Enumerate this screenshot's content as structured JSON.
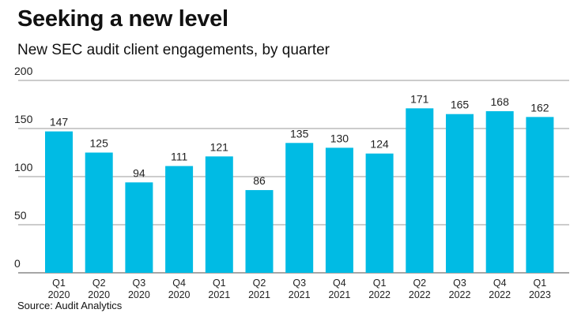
{
  "chart_data": {
    "type": "bar",
    "title": "Seeking a new level",
    "subtitle": "New SEC audit client engagements, by quarter",
    "source": "Source: Audit Analytics",
    "categories": [
      [
        "Q1",
        "2020"
      ],
      [
        "Q2",
        "2020"
      ],
      [
        "Q3",
        "2020"
      ],
      [
        "Q4",
        "2020"
      ],
      [
        "Q1",
        "2021"
      ],
      [
        "Q2",
        "2021"
      ],
      [
        "Q3",
        "2021"
      ],
      [
        "Q4",
        "2021"
      ],
      [
        "Q1",
        "2022"
      ],
      [
        "Q2",
        "2022"
      ],
      [
        "Q3",
        "2022"
      ],
      [
        "Q4",
        "2022"
      ],
      [
        "Q1",
        "2023"
      ]
    ],
    "values": [
      147,
      125,
      94,
      111,
      121,
      86,
      135,
      130,
      124,
      171,
      165,
      168,
      162
    ],
    "ylim": [
      0,
      200
    ],
    "yticks": [
      0,
      50,
      100,
      150,
      200
    ],
    "grid": true,
    "bar_color": "#00bbe4",
    "grid_color": "#9a9a9a"
  }
}
